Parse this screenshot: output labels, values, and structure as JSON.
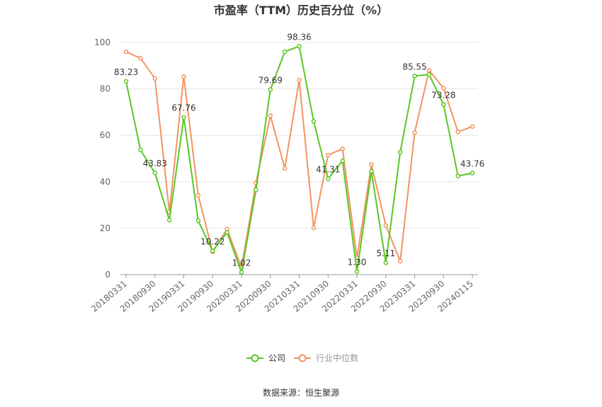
{
  "chart_data": {
    "type": "line",
    "title": "市盈率（TTM）历史百分位（%）",
    "source": "数据来源：恒生聚源",
    "ylim": [
      0,
      100
    ],
    "yticks": [
      0,
      20,
      40,
      60,
      80,
      100
    ],
    "grid": true,
    "legend_position": "bottom-center",
    "x": [
      "20180331",
      "20180630",
      "20180930",
      "20181231",
      "20190331",
      "20190630",
      "20190930",
      "20191231",
      "20200331",
      "20200630",
      "20200930",
      "20201231",
      "20210331",
      "20210630",
      "20210930",
      "20211231",
      "20220331",
      "20220630",
      "20220930",
      "20221231",
      "20230331",
      "20230630",
      "20230930",
      "20231231",
      "20240115"
    ],
    "x_tick_labels": [
      "20180331",
      "20180930",
      "20190331",
      "20190930",
      "20200331",
      "20200930",
      "20210331",
      "20210930",
      "20220331",
      "20220930",
      "20230331",
      "20230930",
      "20240115"
    ],
    "series": [
      {
        "name": "公司",
        "color": "#5ac724",
        "values": [
          83.23,
          53.7,
          43.83,
          23.5,
          67.76,
          23.2,
          10.22,
          18.2,
          1.02,
          36.5,
          79.69,
          96.0,
          98.36,
          66.0,
          41.31,
          49.0,
          1.3,
          44.5,
          5.11,
          52.8,
          85.55,
          86.2,
          73.28,
          42.5,
          43.76
        ],
        "labels": {
          "0": "83.23",
          "2": "43.83",
          "4": "67.76",
          "6": "10.22",
          "8": "1.02",
          "10": "79.69",
          "12": "98.36",
          "14": "41.31",
          "16": "1.30",
          "18": "5.11",
          "20": "85.55",
          "22": "73.28",
          "24": "43.76"
        }
      },
      {
        "name": "行业中位数",
        "color": "#f39363",
        "values": [
          96.0,
          93.2,
          84.5,
          27.0,
          85.3,
          34.2,
          9.8,
          19.6,
          3.0,
          39.5,
          68.5,
          45.8,
          83.8,
          20.2,
          51.5,
          54.2,
          7.2,
          47.5,
          21.2,
          5.8,
          61.2,
          88.0,
          80.3,
          61.5,
          63.8
        ]
      }
    ]
  }
}
